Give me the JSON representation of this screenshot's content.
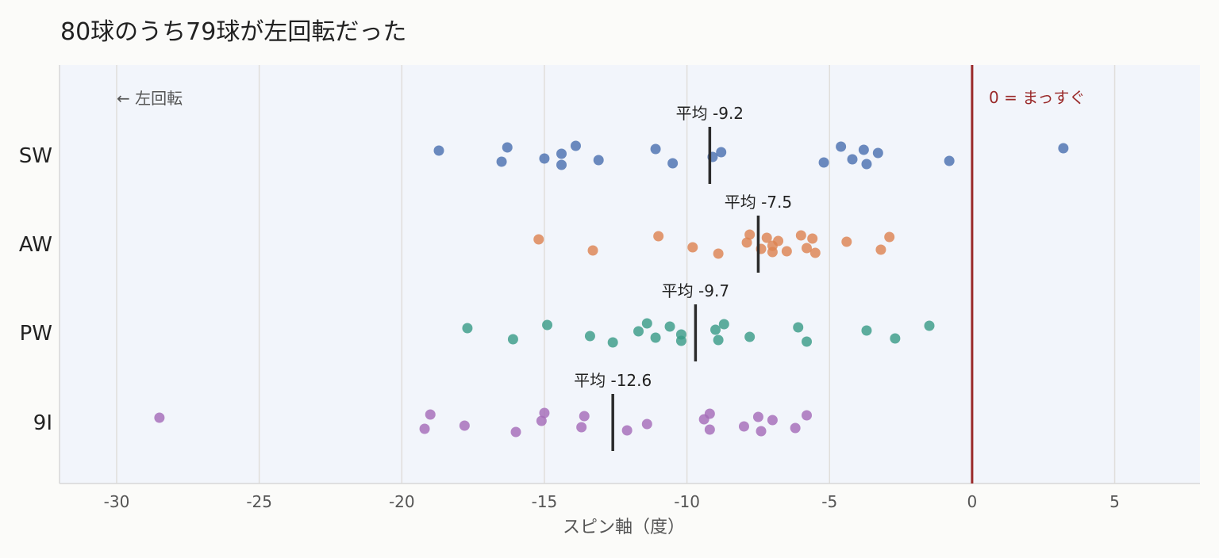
{
  "chart_data": {
    "type": "scatter",
    "title": "80球のうち79球が左回転だった",
    "xlabel": "スピン軸（度）",
    "ylabel": "",
    "xlim": [
      -32,
      8
    ],
    "xticks": [
      -30,
      -25,
      -20,
      -15,
      -10,
      -5,
      0,
      5
    ],
    "xtick_labels": [
      "-30",
      "-25",
      "-20",
      "-15",
      "-10",
      "-5",
      "0",
      "5"
    ],
    "grid": "vertical",
    "categories": [
      "SW",
      "AW",
      "PW",
      "9I"
    ],
    "mean_label_prefix": "平均",
    "annotations": {
      "left_side": "← 左回転",
      "zero_line": "0 = まっすぐ"
    },
    "colors": {
      "plot_shade": "#f2f5fb",
      "zero_line": "#9a2a2a",
      "mean_bar": "#2b2b2b",
      "grid": "#e0dedb"
    },
    "series": [
      {
        "category": "SW",
        "color": "#4c72b0",
        "mean": -9.2,
        "values": [
          -18.7,
          -16.5,
          -16.3,
          -15.0,
          -14.4,
          -14.4,
          -13.9,
          -13.1,
          -11.1,
          -10.5,
          -9.1,
          -8.8,
          -5.2,
          -4.6,
          -4.2,
          -3.8,
          -3.7,
          -3.3,
          -0.8,
          3.2
        ]
      },
      {
        "category": "AW",
        "color": "#dd8452",
        "mean": -7.5,
        "values": [
          -15.2,
          -13.3,
          -11.0,
          -9.8,
          -8.9,
          -7.9,
          -7.8,
          -7.4,
          -7.2,
          -7.0,
          -7.0,
          -6.8,
          -6.5,
          -6.0,
          -5.8,
          -5.6,
          -5.5,
          -4.4,
          -3.2,
          -2.9
        ]
      },
      {
        "category": "PW",
        "color": "#3a9c87",
        "mean": -9.7,
        "values": [
          -17.7,
          -16.1,
          -14.9,
          -13.4,
          -12.6,
          -11.7,
          -11.4,
          -11.1,
          -10.6,
          -10.2,
          -10.2,
          -9.0,
          -8.9,
          -8.7,
          -7.8,
          -6.1,
          -5.8,
          -3.7,
          -2.7,
          -1.5
        ]
      },
      {
        "category": "9I",
        "color": "#a56cb8",
        "mean": -12.6,
        "values": [
          -28.5,
          -19.2,
          -19.0,
          -17.8,
          -16.0,
          -15.1,
          -15.0,
          -13.7,
          -13.6,
          -12.1,
          -11.4,
          -9.4,
          -9.2,
          -9.2,
          -8.0,
          -7.5,
          -7.4,
          -7.0,
          -6.2,
          -5.8
        ]
      }
    ]
  }
}
